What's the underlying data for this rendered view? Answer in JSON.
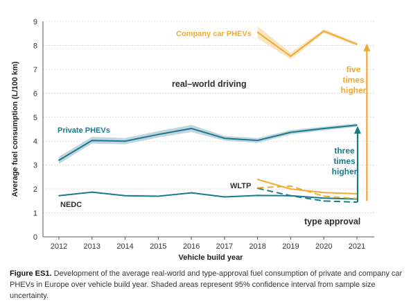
{
  "chart_data": {
    "type": "line",
    "xlabel": "Vehicle build year",
    "ylabel": "Average fuel consumption (L/100 km)",
    "ylim": [
      0,
      9
    ],
    "yticks": [
      0,
      1,
      2,
      3,
      4,
      5,
      6,
      7,
      8,
      9
    ],
    "x": [
      2012,
      2013,
      2014,
      2015,
      2016,
      2017,
      2018,
      2019,
      2020,
      2021
    ],
    "grid": "horizontal dotted",
    "colors": {
      "teal": "#177a8a",
      "gold": "#f2aa2d",
      "teal_band": "#b9cdd8",
      "gold_band": "#f7dfb4"
    },
    "series": [
      {
        "name": "Private PHEVs (real-world)",
        "style": "solid",
        "color": "teal",
        "x": [
          2012,
          2013,
          2014,
          2015,
          2016,
          2017,
          2018,
          2019,
          2020,
          2021
        ],
        "values": [
          3.2,
          4.03,
          4.0,
          4.28,
          4.53,
          4.12,
          4.03,
          4.37,
          4.53,
          4.67
        ],
        "ci_low": [
          3.05,
          3.9,
          3.87,
          4.15,
          4.38,
          4.02,
          3.93,
          4.28,
          4.45,
          4.6
        ],
        "ci_high": [
          3.35,
          4.18,
          4.13,
          4.42,
          4.68,
          4.22,
          4.13,
          4.46,
          4.61,
          4.74
        ]
      },
      {
        "name": "Company car PHEVs (real-world)",
        "style": "solid",
        "color": "gold",
        "x": [
          2018,
          2019,
          2020,
          2021
        ],
        "values": [
          8.55,
          7.55,
          8.6,
          8.05
        ],
        "ci_low": [
          8.3,
          7.42,
          8.52,
          7.98
        ],
        "ci_high": [
          8.8,
          7.7,
          8.68,
          8.12
        ]
      },
      {
        "name": "Private PHEVs (NEDC)",
        "style": "solid",
        "color": "teal",
        "x": [
          2012,
          2013,
          2014,
          2015,
          2016,
          2017,
          2018,
          2019,
          2020,
          2021
        ],
        "values": [
          1.72,
          1.87,
          1.72,
          1.7,
          1.84,
          1.67,
          1.73,
          1.72,
          1.62,
          1.58
        ]
      },
      {
        "name": "Company car PHEVs (NEDC)",
        "style": "solid",
        "color": "gold",
        "x": [
          2018,
          2019,
          2020,
          2021
        ],
        "values": [
          2.4,
          2.0,
          1.85,
          1.8
        ]
      },
      {
        "name": "Private PHEVs (WLTP)",
        "style": "dashed",
        "color": "teal",
        "x": [
          2018,
          2019,
          2020,
          2021
        ],
        "values": [
          2.03,
          1.72,
          1.5,
          1.45
        ]
      },
      {
        "name": "Company car PHEVs (WLTP)",
        "style": "dashed",
        "color": "gold",
        "x": [
          2018,
          2019,
          2020,
          2021
        ],
        "values": [
          2.05,
          2.12,
          1.7,
          1.6
        ]
      }
    ],
    "annotations": {
      "company_label": "Company car PHEVs",
      "private_label": "Private PHEVs",
      "real_world": "real–world driving",
      "wltp": "WLTP",
      "nedc": "NEDC",
      "type_approval": "type approval",
      "five_times": [
        "five",
        "times",
        "higher"
      ],
      "three_times": [
        "three",
        "times",
        "higher"
      ]
    },
    "arrows": [
      {
        "name": "five-times-arrow",
        "x": 2021.3,
        "from": 1.5,
        "to": 8.05,
        "color": "gold"
      },
      {
        "name": "three-times-arrow",
        "x": 2021.02,
        "from": 1.45,
        "to": 4.6,
        "color": "teal"
      }
    ]
  },
  "caption": {
    "label": "Figure ES1.",
    "text": " Development of the average real-world and type-approval fuel consumption of private and company car PHEVs in Europe over vehicle build year. Shaded areas represent 95% confidence interval from sample size uncertainty."
  }
}
